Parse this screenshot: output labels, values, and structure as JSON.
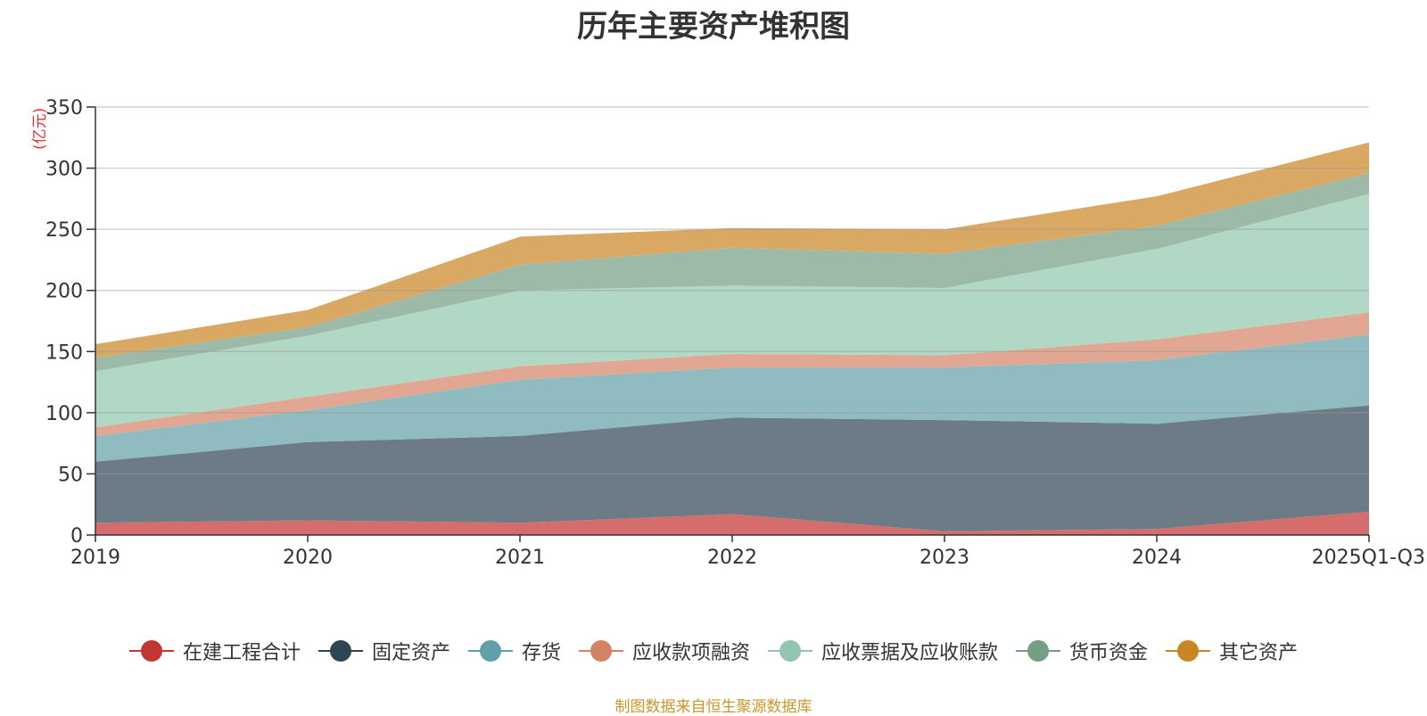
{
  "chart_data": {
    "type": "area",
    "stacked": true,
    "title": "历年主要资产堆积图",
    "unit": "(亿元)",
    "categories": [
      "2019",
      "2020",
      "2021",
      "2022",
      "2023",
      "2024",
      "2025Q1-Q3"
    ],
    "ylim": [
      0,
      350
    ],
    "yticks": [
      0,
      50,
      100,
      150,
      200,
      250,
      300,
      350
    ],
    "grid": true,
    "legend_position": "bottom",
    "source": "制图数据来自恒生聚源数据库",
    "series": [
      {
        "name": "在建工程合计",
        "color": "#c23531",
        "fill": "#d46d6b",
        "values": [
          10,
          12,
          10,
          17,
          3,
          5,
          19
        ]
      },
      {
        "name": "固定资产",
        "color": "#2f4554",
        "fill": "#6d7b86",
        "values": [
          50,
          64,
          71,
          79,
          91,
          86,
          87
        ]
      },
      {
        "name": "存货",
        "color": "#61a0a8",
        "fill": "#90bbc1",
        "values": [
          21,
          26,
          46,
          41,
          43,
          52,
          58
        ]
      },
      {
        "name": "应收款项融资",
        "color": "#d48265",
        "fill": "#e1a793",
        "values": [
          7,
          11,
          11,
          11,
          10,
          17,
          18
        ]
      },
      {
        "name": "应收票据及应收账款",
        "color": "#91c7ae",
        "fill": "#b1d7c5",
        "values": [
          46,
          50,
          62,
          56,
          55,
          74,
          97
        ]
      },
      {
        "name": "货币资金",
        "color": "#749f83",
        "fill": "#9db9a7",
        "values": [
          11,
          7,
          21,
          31,
          28,
          19,
          17
        ]
      },
      {
        "name": "其它资产",
        "color": "#ca8622",
        "fill": "#d9a964",
        "values": [
          11,
          14,
          23,
          16,
          20,
          24,
          25
        ]
      }
    ]
  }
}
